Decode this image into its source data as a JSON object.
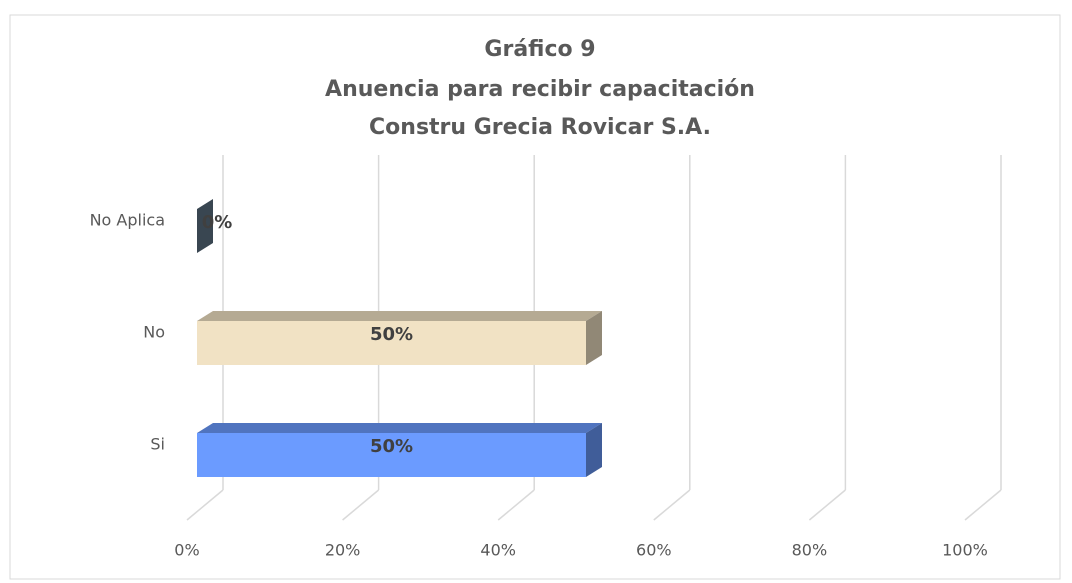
{
  "chart_data": {
    "type": "bar3d_horizontal",
    "title": "Gráfico 9",
    "subtitle": [
      "Anuencia para recibir capacitación",
      "Constru Grecia Rovicar S.A."
    ],
    "categories": [
      "Si",
      "No",
      "No Aplica"
    ],
    "values": [
      50,
      50,
      0
    ],
    "value_labels": [
      "50%",
      "50%",
      "0%"
    ],
    "colors": [
      "#6b9bff",
      "#f1e2c4",
      "#5f7587"
    ],
    "xlim": [
      0,
      100
    ],
    "xticks": [
      {
        "value": 0,
        "label": "0%"
      },
      {
        "value": 20,
        "label": "20%"
      },
      {
        "value": 40,
        "label": "40%"
      },
      {
        "value": 60,
        "label": "60%"
      },
      {
        "value": 80,
        "label": "80%"
      },
      {
        "value": 100,
        "label": "100%"
      }
    ],
    "grid": true
  }
}
